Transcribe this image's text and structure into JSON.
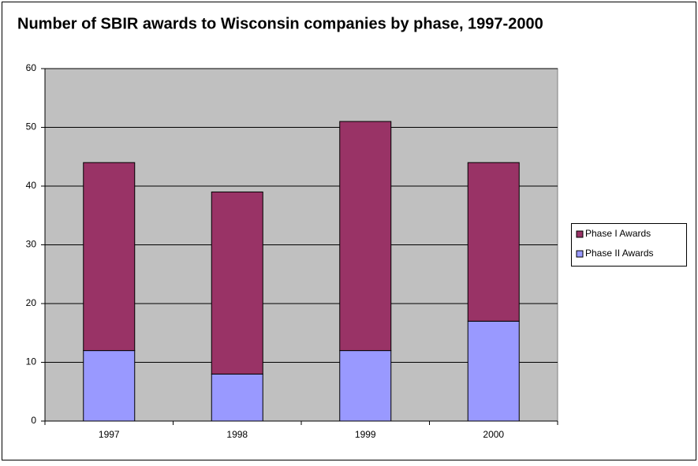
{
  "chart_data": {
    "type": "stacked-bar",
    "title": "Number of SBIR awards to Wisconsin companies by phase, 1997-2000",
    "categories": [
      "1997",
      "1998",
      "1999",
      "2000"
    ],
    "series": [
      {
        "name": "Phase I Awards",
        "color": "#993366",
        "values": [
          32,
          31,
          39,
          27
        ]
      },
      {
        "name": "Phase II Awards",
        "color": "#9999ff",
        "values": [
          12,
          8,
          12,
          17
        ]
      }
    ],
    "ylim": [
      0,
      60
    ],
    "yticks": [
      0,
      10,
      20,
      30,
      40,
      50,
      60
    ],
    "grid": true,
    "legend": "right"
  }
}
